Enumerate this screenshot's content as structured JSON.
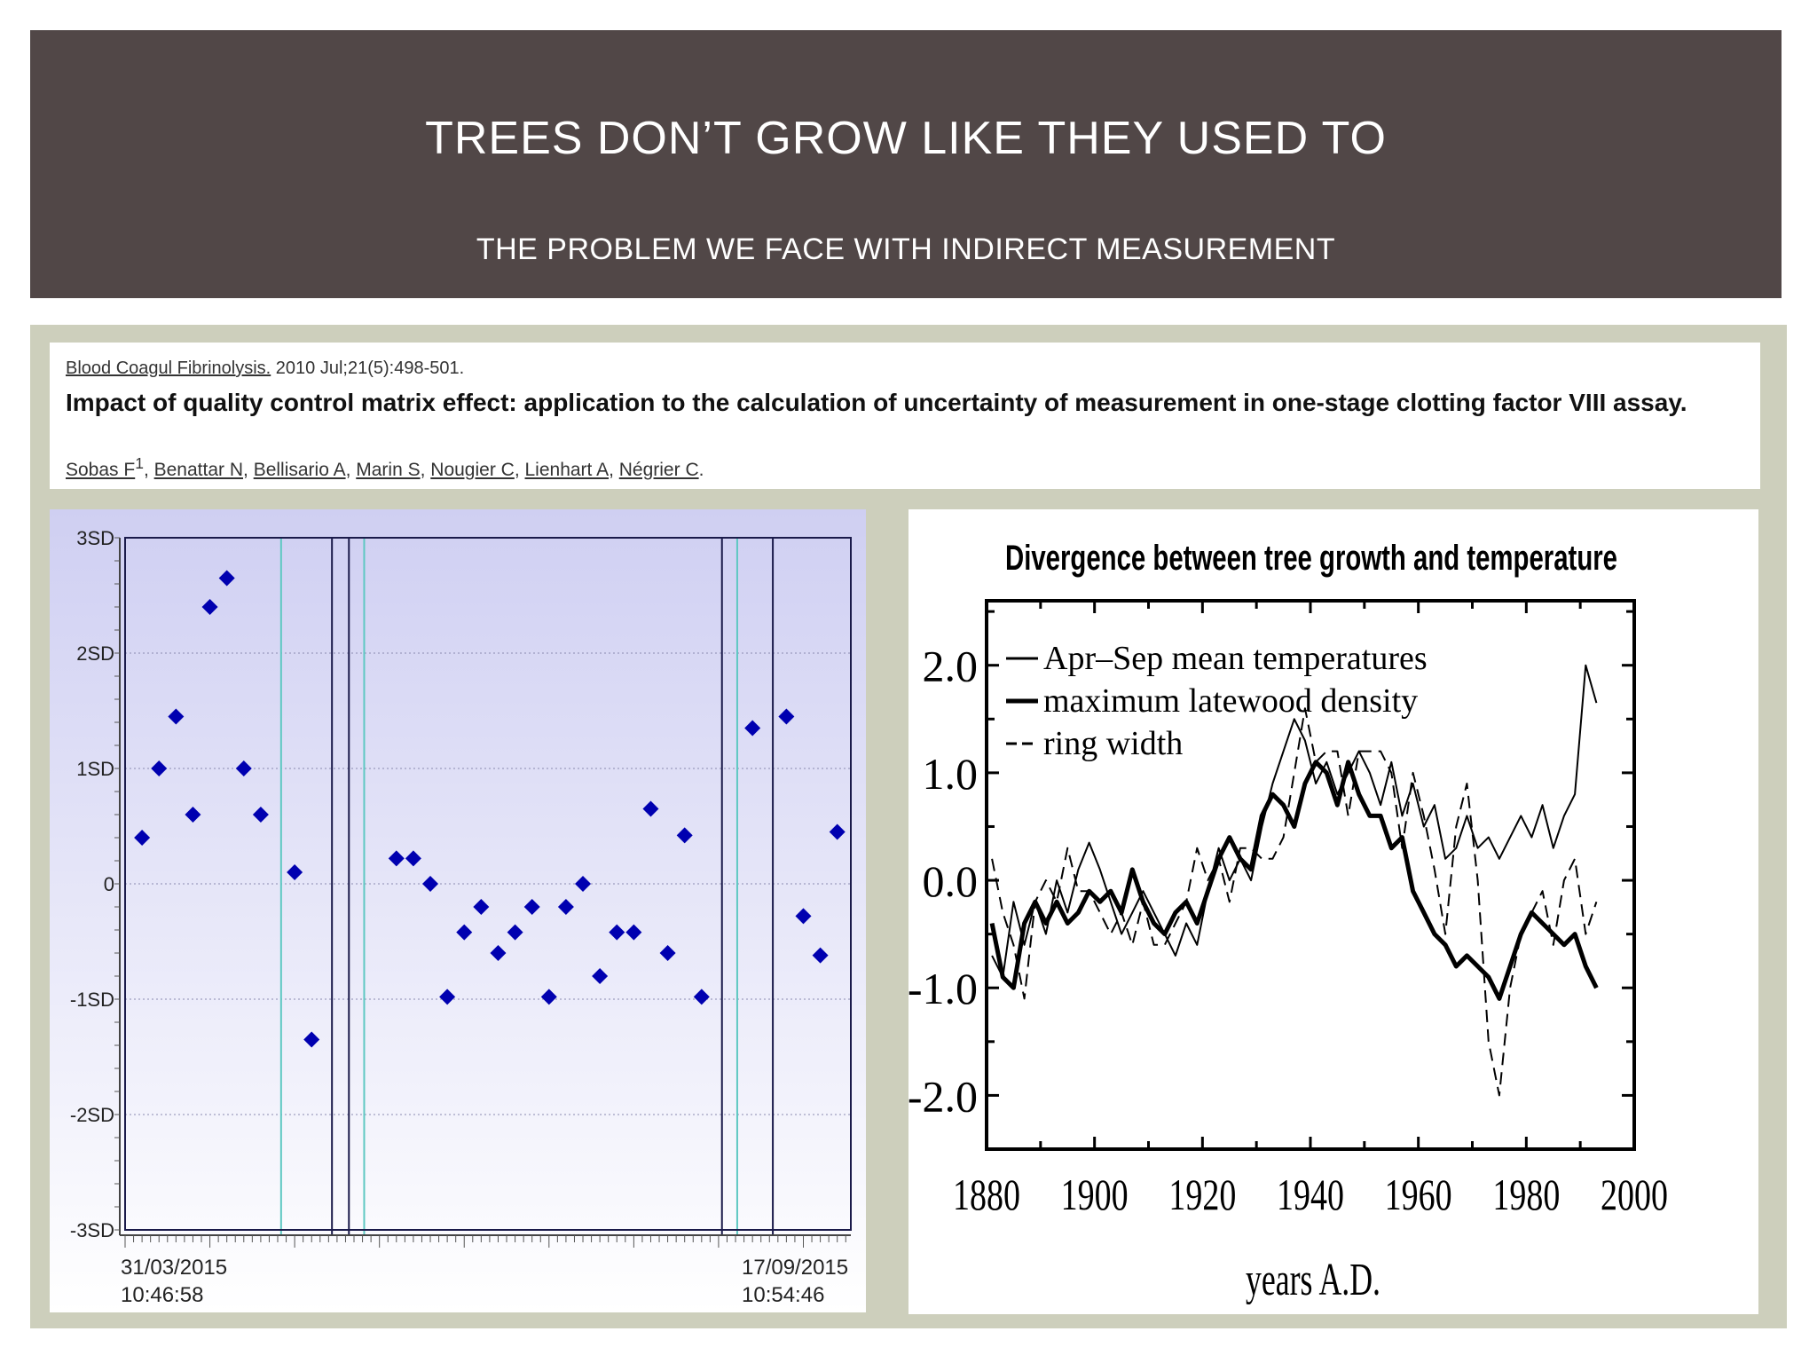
{
  "slide": {
    "title": "TREES DON’T GROW LIKE THEY USED TO",
    "subtitle": "THE PROBLEM WE FACE WITH INDIRECT MEASUREMENT"
  },
  "citation": {
    "journal": "Blood Coagul Fibrinolysis.",
    "date_ref": " 2010 Jul;21(5):498-501.",
    "title": "Impact of quality control matrix effect: application to the calculation of uncertainty of measurement in one-stage clotting factor VIII assay.",
    "authors": [
      "Sobas F",
      "Benattar N",
      "Bellisario A",
      "Marin S",
      "Nougier C",
      "Lienhart A",
      "Négrier C"
    ],
    "first_author_sup": "1"
  },
  "chart_data": [
    {
      "type": "scatter",
      "title": "",
      "y_tick_labels": [
        "3SD",
        "2SD",
        "1SD",
        "0",
        "-1SD",
        "-2SD",
        "-3SD"
      ],
      "ylim": [
        -3,
        3
      ],
      "x_start_label": [
        "31/03/2015",
        "10:46:58"
      ],
      "x_end_label": [
        "17/09/2015",
        "10:54:46"
      ],
      "points": [
        {
          "i": 1,
          "y": 0.4
        },
        {
          "i": 2,
          "y": 1.0
        },
        {
          "i": 3,
          "y": 1.45
        },
        {
          "i": 4,
          "y": 0.6
        },
        {
          "i": 5,
          "y": 2.4
        },
        {
          "i": 6,
          "y": 2.65
        },
        {
          "i": 7,
          "y": 1.0
        },
        {
          "i": 8,
          "y": 0.6
        },
        {
          "i": 10,
          "y": 0.1
        },
        {
          "i": 11,
          "y": -1.35
        },
        {
          "i": 16,
          "y": 0.22
        },
        {
          "i": 17,
          "y": 0.22
        },
        {
          "i": 18,
          "y": 0.0
        },
        {
          "i": 19,
          "y": -0.98
        },
        {
          "i": 20,
          "y": -0.42
        },
        {
          "i": 21,
          "y": -0.2
        },
        {
          "i": 22,
          "y": -0.6
        },
        {
          "i": 23,
          "y": -0.42
        },
        {
          "i": 24,
          "y": -0.2
        },
        {
          "i": 25,
          "y": -0.98
        },
        {
          "i": 26,
          "y": -0.2
        },
        {
          "i": 27,
          "y": 0.0
        },
        {
          "i": 28,
          "y": -0.8
        },
        {
          "i": 29,
          "y": -0.42
        },
        {
          "i": 30,
          "y": -0.42
        },
        {
          "i": 31,
          "y": 0.65
        },
        {
          "i": 32,
          "y": -0.6
        },
        {
          "i": 33,
          "y": 0.42
        },
        {
          "i": 34,
          "y": -0.98
        },
        {
          "i": 37,
          "y": 1.35
        },
        {
          "i": 39,
          "y": 1.45
        },
        {
          "i": 40,
          "y": -0.28
        },
        {
          "i": 41,
          "y": -0.62
        },
        {
          "i": 42,
          "y": 0.45
        }
      ],
      "vertical_lines": [
        {
          "i": 9.2,
          "color": "#5ec8c2"
        },
        {
          "i": 12.2,
          "color": "#1a1a4a"
        },
        {
          "i": 13.2,
          "color": "#1a1a4a"
        },
        {
          "i": 14.1,
          "color": "#5ec8c2"
        },
        {
          "i": 35.2,
          "color": "#1a1a4a"
        },
        {
          "i": 36.1,
          "color": "#5ec8c2"
        },
        {
          "i": 38.2,
          "color": "#1a1a4a"
        }
      ],
      "index_range": [
        0,
        42.8
      ],
      "point_color": "#0000b0",
      "plot_bg_top": "#cfcff2",
      "plot_bg_bottom": "#ffffff"
    },
    {
      "type": "line",
      "title": "Divergence between tree growth and temperature",
      "xlabel": "years A.D.",
      "xlim": [
        1880,
        2000
      ],
      "ylim": [
        -2.5,
        2.6
      ],
      "x_ticks": [
        1880,
        1900,
        1920,
        1940,
        1960,
        1980,
        2000
      ],
      "y_ticks": [
        2.0,
        1.0,
        0.0,
        -1.0,
        -2.0
      ],
      "y_tick_labels": [
        "2.0",
        "1.0",
        "0.0",
        "-1.0",
        "-2.0"
      ],
      "grid": false,
      "legend_position": "top-left",
      "series": [
        {
          "name": "Apr–Sep mean temperatures",
          "style": "solid",
          "width": 2,
          "x": [
            1881,
            1883,
            1885,
            1887,
            1889,
            1891,
            1893,
            1895,
            1897,
            1899,
            1901,
            1903,
            1905,
            1907,
            1909,
            1911,
            1913,
            1915,
            1917,
            1919,
            1921,
            1923,
            1925,
            1927,
            1929,
            1931,
            1933,
            1935,
            1937,
            1939,
            1941,
            1943,
            1945,
            1947,
            1949,
            1951,
            1953,
            1955,
            1957,
            1959,
            1961,
            1963,
            1965,
            1967,
            1969,
            1971,
            1973,
            1975,
            1977,
            1979,
            1981,
            1983,
            1985,
            1987,
            1989,
            1991,
            1993
          ],
          "y": [
            -0.7,
            -0.9,
            -0.2,
            -0.6,
            -0.2,
            -0.5,
            0.0,
            -0.3,
            0.1,
            0.35,
            0.1,
            -0.2,
            -0.5,
            -0.3,
            -0.1,
            -0.3,
            -0.5,
            -0.7,
            -0.4,
            -0.6,
            -0.1,
            0.3,
            0.0,
            0.2,
            0.0,
            0.5,
            0.9,
            1.2,
            1.5,
            1.3,
            0.9,
            1.1,
            0.8,
            1.0,
            1.2,
            1.0,
            0.7,
            1.1,
            0.6,
            0.9,
            0.5,
            0.7,
            0.2,
            0.3,
            0.6,
            0.3,
            0.4,
            0.2,
            0.4,
            0.6,
            0.4,
            0.7,
            0.3,
            0.6,
            0.8,
            2.0,
            1.65
          ]
        },
        {
          "name": "maximum latewood density",
          "style": "solid",
          "width": 5,
          "x": [
            1881,
            1883,
            1885,
            1887,
            1889,
            1891,
            1893,
            1895,
            1897,
            1899,
            1901,
            1903,
            1905,
            1907,
            1909,
            1911,
            1913,
            1915,
            1917,
            1919,
            1921,
            1923,
            1925,
            1927,
            1929,
            1931,
            1933,
            1935,
            1937,
            1939,
            1941,
            1943,
            1945,
            1947,
            1949,
            1951,
            1953,
            1955,
            1957,
            1959,
            1961,
            1963,
            1965,
            1967,
            1969,
            1971,
            1973,
            1975,
            1977,
            1979,
            1981,
            1983,
            1985,
            1987,
            1989,
            1991,
            1993
          ],
          "y": [
            -0.4,
            -0.9,
            -1.0,
            -0.4,
            -0.2,
            -0.4,
            -0.2,
            -0.4,
            -0.3,
            -0.1,
            -0.2,
            -0.1,
            -0.3,
            0.1,
            -0.2,
            -0.4,
            -0.5,
            -0.3,
            -0.2,
            -0.4,
            -0.1,
            0.2,
            0.4,
            0.2,
            0.1,
            0.6,
            0.8,
            0.7,
            0.5,
            0.9,
            1.1,
            1.0,
            0.7,
            1.1,
            0.8,
            0.6,
            0.6,
            0.3,
            0.4,
            -0.1,
            -0.3,
            -0.5,
            -0.6,
            -0.8,
            -0.7,
            -0.8,
            -0.9,
            -1.1,
            -0.8,
            -0.5,
            -0.3,
            -0.4,
            -0.5,
            -0.6,
            -0.5,
            -0.8,
            -1.0
          ]
        },
        {
          "name": "ring width",
          "style": "dashed",
          "width": 2,
          "x": [
            1881,
            1883,
            1885,
            1887,
            1889,
            1891,
            1893,
            1895,
            1897,
            1899,
            1901,
            1903,
            1905,
            1907,
            1909,
            1911,
            1913,
            1915,
            1917,
            1919,
            1921,
            1923,
            1925,
            1927,
            1929,
            1931,
            1933,
            1935,
            1937,
            1939,
            1941,
            1943,
            1945,
            1947,
            1949,
            1951,
            1953,
            1955,
            1957,
            1959,
            1961,
            1963,
            1965,
            1967,
            1969,
            1971,
            1973,
            1975,
            1977,
            1979,
            1981,
            1983,
            1985,
            1987,
            1989,
            1991,
            1993
          ],
          "y": [
            0.2,
            -0.3,
            -0.6,
            -1.1,
            -0.2,
            0.0,
            -0.2,
            0.3,
            -0.1,
            -0.1,
            -0.3,
            -0.5,
            -0.3,
            -0.6,
            -0.2,
            -0.6,
            -0.6,
            -0.4,
            -0.2,
            0.3,
            0.0,
            0.2,
            -0.2,
            0.3,
            0.3,
            0.2,
            0.2,
            0.4,
            1.0,
            1.6,
            1.1,
            1.2,
            1.2,
            0.6,
            1.2,
            1.2,
            1.2,
            1.0,
            0.3,
            1.0,
            0.6,
            0.1,
            -0.5,
            0.5,
            0.9,
            0.0,
            -1.5,
            -2.0,
            -1.0,
            -0.5,
            -0.3,
            -0.1,
            -0.6,
            0.0,
            0.2,
            -0.5,
            -0.2
          ]
        }
      ]
    }
  ]
}
